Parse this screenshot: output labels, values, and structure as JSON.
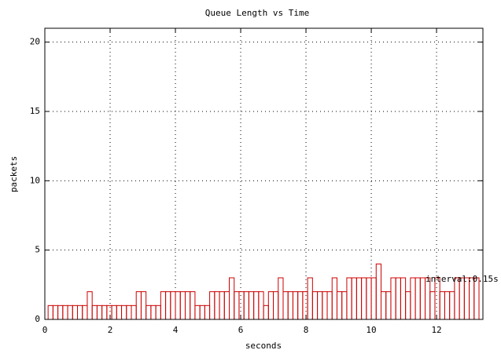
{
  "chart_data": {
    "type": "histogram",
    "title": "Queue Length vs Time",
    "xlabel": "seconds",
    "ylabel": "packets",
    "annotation": "interval:0.15s",
    "bins": [
      0.1,
      0.25,
      0.4,
      0.55,
      0.7,
      0.85,
      1,
      1.15,
      1.3,
      1.45,
      1.6,
      1.75,
      1.9,
      2.05,
      2.2,
      2.35,
      2.5,
      2.65,
      2.8,
      2.95,
      3.1,
      3.25,
      3.4,
      3.55,
      3.7,
      3.85,
      4,
      4.15,
      4.3,
      4.45,
      4.6,
      4.75,
      4.9,
      5.05,
      5.2,
      5.35,
      5.5,
      5.65,
      5.8,
      5.95,
      6.1,
      6.25,
      6.4,
      6.55,
      6.7,
      6.85,
      7,
      7.15,
      7.3,
      7.45,
      7.6,
      7.75,
      7.9,
      8.05,
      8.2,
      8.35,
      8.5,
      8.65,
      8.8,
      8.95,
      9.1,
      9.25,
      9.4,
      9.55,
      9.7,
      9.85,
      10,
      10.15,
      10.3,
      10.45,
      10.6,
      10.75,
      10.9,
      11.05,
      11.2,
      11.35,
      11.5,
      11.65,
      11.8,
      11.95,
      12.1,
      12.25,
      12.4,
      12.55,
      12.7,
      12.85,
      13,
      13.15,
      13.3
    ],
    "counts": [
      1,
      1,
      1,
      1,
      1,
      1,
      1,
      1,
      2,
      1,
      1,
      1,
      1,
      1,
      1,
      1,
      1,
      1,
      2,
      2,
      1,
      1,
      1,
      2,
      2,
      2,
      2,
      2,
      2,
      2,
      1,
      1,
      1,
      2,
      2,
      2,
      2,
      3,
      2,
      2,
      2,
      2,
      2,
      2,
      1,
      2,
      2,
      3,
      2,
      2,
      2,
      2,
      2,
      3,
      2,
      2,
      2,
      2,
      3,
      2,
      2,
      3,
      3,
      3,
      3,
      3,
      3,
      4,
      2,
      2,
      3,
      3,
      3,
      2,
      3,
      3,
      3,
      3,
      2,
      3,
      2,
      2,
      2,
      3,
      3,
      3,
      3,
      3
    ],
    "color": "#cc0000",
    "xlim": [
      0,
      13.42
    ],
    "xticks": [
      0,
      2,
      4,
      6,
      8,
      10,
      12
    ],
    "ylim": [
      0,
      21
    ],
    "yticks": [
      0,
      5,
      10,
      15,
      20
    ],
    "grid": true
  }
}
